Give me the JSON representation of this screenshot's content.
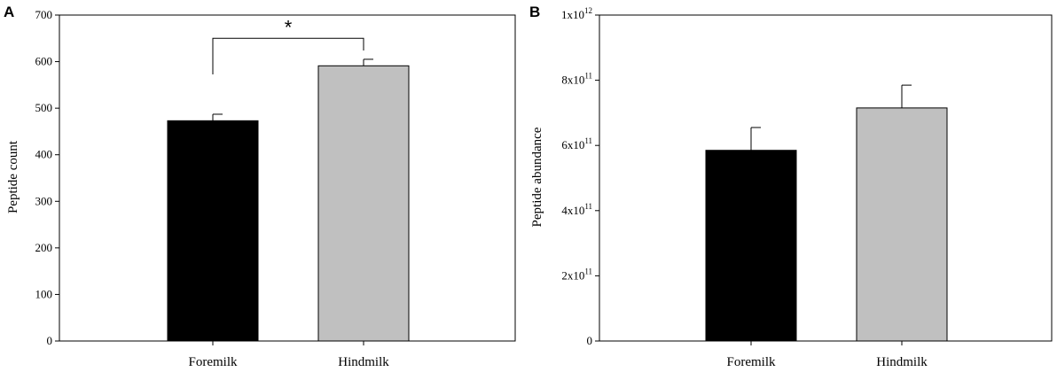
{
  "chart_data": [
    {
      "type": "bar",
      "panel": "A",
      "categories": [
        "Foremilk",
        "Hindmilk"
      ],
      "values": [
        473,
        591
      ],
      "errors": [
        14,
        14
      ],
      "colors": [
        "#000000",
        "#c0c0c0"
      ],
      "ylabel": "Peptide count",
      "ylim": [
        0,
        700
      ],
      "yticks": [
        {
          "value": 0,
          "label": "0"
        },
        {
          "value": 100,
          "label": "100"
        },
        {
          "value": 200,
          "label": "200"
        },
        {
          "value": 300,
          "label": "300"
        },
        {
          "value": 400,
          "label": "400"
        },
        {
          "value": 500,
          "label": "500"
        },
        {
          "value": 600,
          "label": "600"
        },
        {
          "value": 700,
          "label": "700"
        }
      ],
      "significance": {
        "label": "*",
        "between": [
          0,
          1
        ],
        "level": 650
      },
      "grid": false
    },
    {
      "type": "bar",
      "panel": "B",
      "categories": [
        "Foremilk",
        "Hindmilk"
      ],
      "values": [
        585000000000.0,
        715000000000.0
      ],
      "errors": [
        70000000000.0,
        70000000000.0
      ],
      "colors": [
        "#000000",
        "#c0c0c0"
      ],
      "ylabel": "Peptide abundance",
      "ylim": [
        0,
        1000000000000.0
      ],
      "yticks": [
        {
          "value": 0,
          "base": "0",
          "exp": ""
        },
        {
          "value": 200000000000.0,
          "base": "2x10",
          "exp": "11"
        },
        {
          "value": 400000000000.0,
          "base": "4x10",
          "exp": "11"
        },
        {
          "value": 600000000000.0,
          "base": "6x10",
          "exp": "11"
        },
        {
          "value": 800000000000.0,
          "base": "8x10",
          "exp": "11"
        },
        {
          "value": 1000000000000.0,
          "base": "1x10",
          "exp": "12"
        }
      ],
      "grid": false
    }
  ]
}
